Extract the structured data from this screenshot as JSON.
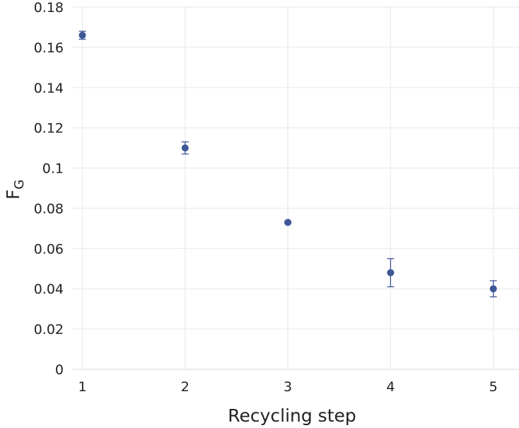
{
  "chart_data": {
    "type": "scatter",
    "xlabel": "Recycling step",
    "ylabel": "F",
    "ylabel_subscript": "G",
    "x": [
      1,
      2,
      3,
      4,
      5
    ],
    "y": [
      0.166,
      0.11,
      0.073,
      0.048,
      0.04
    ],
    "error_lower": [
      0.002,
      0.003,
      0.0005,
      0.007,
      0.004
    ],
    "error_upper": [
      0.002,
      0.003,
      0.0005,
      0.007,
      0.004
    ],
    "xlim": [
      0.9,
      5.25
    ],
    "ylim": [
      0,
      0.18
    ],
    "xticks": [
      "1",
      "2",
      "3",
      "4",
      "5"
    ],
    "yticks": [
      "0",
      "0.02",
      "0.04",
      "0.06",
      "0.08",
      "0.1",
      "0.12",
      "0.14",
      "0.16",
      "0.18"
    ],
    "grid": true,
    "legend": false,
    "colors": {
      "marker": "#3e5797",
      "grid": "#e8ecf2"
    }
  }
}
